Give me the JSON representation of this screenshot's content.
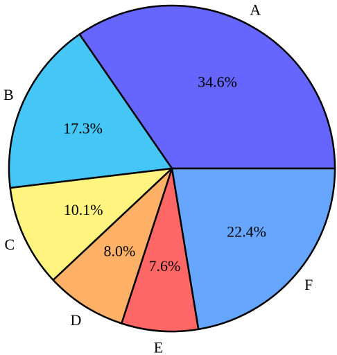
{
  "chart_data": {
    "type": "pie",
    "title": "",
    "start_angle_deg": 0,
    "direction": "counterclockwise",
    "edge_color": "#000000",
    "slices": [
      {
        "label": "A",
        "value": 34.6,
        "value_label": "34.6%",
        "color": "#6666ff"
      },
      {
        "label": "B",
        "value": 17.3,
        "value_label": "17.3%",
        "color": "#45c6f5"
      },
      {
        "label": "C",
        "value": 10.1,
        "value_label": "10.1%",
        "color": "#fff47f"
      },
      {
        "label": "D",
        "value": 8.0,
        "value_label": "8.0%",
        "color": "#ffb167"
      },
      {
        "label": "E",
        "value": 7.6,
        "value_label": "7.6%",
        "color": "#ff6666"
      },
      {
        "label": "F",
        "value": 22.4,
        "value_label": "22.4%",
        "color": "#66a6ff"
      }
    ]
  }
}
